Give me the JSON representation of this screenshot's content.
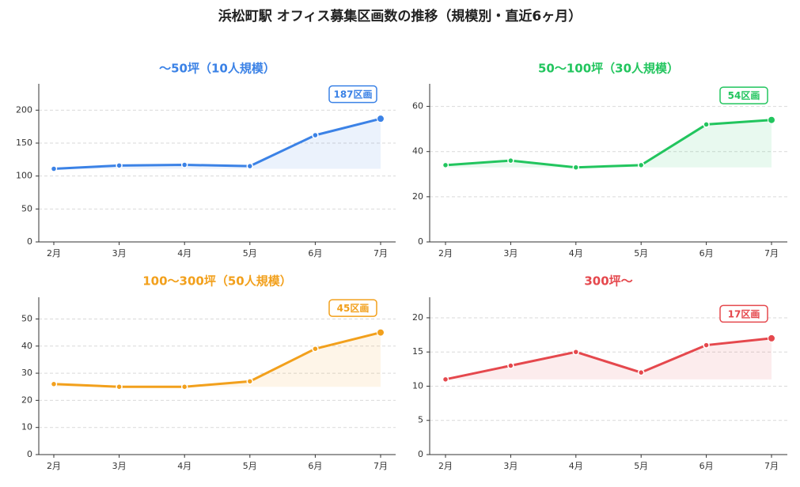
{
  "title": "浜松町駅 オフィス募集区画数の推移（規模別・直近6ヶ月）",
  "chart_data": [
    {
      "type": "area",
      "title": "〜50坪（10人規模）",
      "color": "#3b82e6",
      "categories": [
        "2月",
        "3月",
        "4月",
        "5月",
        "6月",
        "7月"
      ],
      "values": [
        111,
        116,
        117,
        115,
        162,
        187
      ],
      "yticks": [
        0,
        50,
        100,
        150,
        200
      ],
      "ylim": [
        0,
        240
      ],
      "annotation": "187区画",
      "grid": true
    },
    {
      "type": "area",
      "title": "50〜100坪（30人規模）",
      "color": "#22c55e",
      "categories": [
        "2月",
        "3月",
        "4月",
        "5月",
        "6月",
        "7月"
      ],
      "values": [
        34,
        36,
        33,
        34,
        52,
        54
      ],
      "yticks": [
        0,
        20,
        40,
        60
      ],
      "ylim": [
        0,
        70
      ],
      "annotation": "54区画",
      "grid": true
    },
    {
      "type": "area",
      "title": "100〜300坪（50人規模）",
      "color": "#f2a01c",
      "categories": [
        "2月",
        "3月",
        "4月",
        "5月",
        "6月",
        "7月"
      ],
      "values": [
        26,
        25,
        25,
        27,
        39,
        45
      ],
      "yticks": [
        0,
        10,
        20,
        30,
        40,
        50
      ],
      "ylim": [
        0,
        58
      ],
      "annotation": "45区画",
      "grid": true
    },
    {
      "type": "area",
      "title": "300坪〜",
      "color": "#e5484d",
      "categories": [
        "2月",
        "3月",
        "4月",
        "5月",
        "6月",
        "7月"
      ],
      "values": [
        11,
        13,
        15,
        12,
        16,
        17
      ],
      "yticks": [
        0,
        5,
        10,
        15,
        20
      ],
      "ylim": [
        0,
        23
      ],
      "annotation": "17区画",
      "grid": true
    }
  ]
}
